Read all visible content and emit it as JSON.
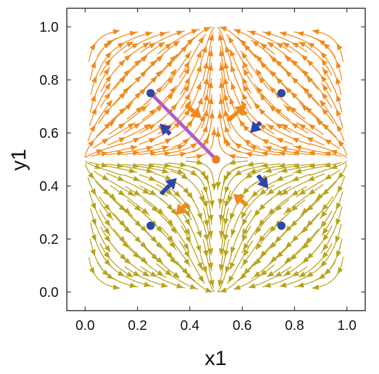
{
  "chart_data": {
    "type": "scatter",
    "subtype": "stream-plot",
    "title": "",
    "xlabel": "x1",
    "ylabel": "y1",
    "xlim": [
      -0.07,
      1.07
    ],
    "ylim": [
      -0.07,
      1.07
    ],
    "xticks": [
      "0.0",
      "0.2",
      "0.4",
      "0.6",
      "0.8",
      "1.0"
    ],
    "yticks": [
      "0.0",
      "0.2",
      "0.4",
      "0.6",
      "0.8",
      "1.0"
    ],
    "xtick_values": [
      0,
      0.2,
      0.4,
      0.6,
      0.8,
      1.0
    ],
    "ytick_values": [
      0,
      0.2,
      0.4,
      0.6,
      0.8,
      1.0
    ],
    "grid": false,
    "frame": true,
    "vector_field": {
      "domain": [
        0,
        1
      ],
      "saddle_point": [
        0.5,
        0.5
      ],
      "unstable_direction": "y",
      "stable_direction": "x",
      "color_high_y": "#f08a1c",
      "color_low_y": "#b8a31c"
    },
    "series": [
      {
        "kind": "points",
        "color": "#2f45a8",
        "points": [
          [
            0.25,
            0.75
          ],
          [
            0.75,
            0.75
          ],
          [
            0.25,
            0.25
          ],
          [
            0.75,
            0.25
          ]
        ]
      },
      {
        "kind": "points",
        "color": "#f07d1a",
        "points": [
          [
            0.5,
            0.5
          ]
        ]
      },
      {
        "kind": "line",
        "color": "#b45cc7",
        "points": [
          [
            0.25,
            0.75
          ],
          [
            0.5,
            0.5
          ]
        ]
      },
      {
        "kind": "arrows",
        "color": "#2f45a8",
        "arrows": [
          {
            "from": [
              0.325,
              0.595
            ],
            "to": [
              0.285,
              0.635
            ]
          },
          {
            "from": [
              0.67,
              0.64
            ],
            "to": [
              0.63,
              0.6
            ]
          },
          {
            "from": [
              0.29,
              0.37
            ],
            "to": [
              0.35,
              0.43
            ]
          },
          {
            "from": [
              0.66,
              0.44
            ],
            "to": [
              0.7,
              0.39
            ]
          }
        ]
      },
      {
        "kind": "arrows",
        "color": "#f08a1c",
        "arrows": [
          {
            "from": [
              0.385,
              0.705
            ],
            "to": [
              0.445,
              0.655
            ]
          },
          {
            "from": [
              0.555,
              0.655
            ],
            "to": [
              0.615,
              0.705
            ]
          },
          {
            "from": [
              0.39,
              0.335
            ],
            "to": [
              0.345,
              0.29
            ]
          },
          {
            "from": [
              0.615,
              0.33
            ],
            "to": [
              0.565,
              0.37
            ]
          }
        ]
      }
    ]
  }
}
